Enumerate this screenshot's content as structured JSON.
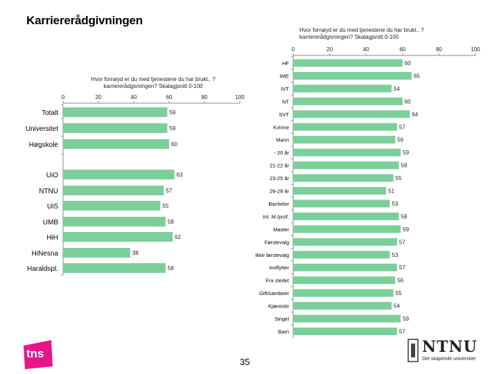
{
  "page": {
    "title": "Karriererådgivningen",
    "page_number": "35",
    "bar_color": "#7ccf9b"
  },
  "logos": {
    "tns": "tns",
    "ntnu_name": "NTNU",
    "ntnu_tagline": "Det skapende universitet"
  },
  "chart_data": [
    {
      "type": "bar",
      "orientation": "horizontal",
      "title": "Hvor fornøyd er du med tjenestene du har brukt.. ? karriererådgivningen? Skalagjsnitt 0-100",
      "xlim": [
        0,
        100
      ],
      "ticks": [
        0,
        20,
        40,
        60,
        80,
        100
      ],
      "groups": [
        {
          "categories": [
            "Totalt",
            "Universitet",
            "Høgskole"
          ],
          "values": [
            59,
            59,
            60
          ]
        },
        {
          "categories": [
            "UiO",
            "NTNU",
            "UiS",
            "UMB",
            "HiH",
            "HiNesna",
            "Haraldspl."
          ],
          "values": [
            63,
            57,
            55,
            58,
            62,
            38,
            58
          ]
        }
      ]
    },
    {
      "type": "bar",
      "orientation": "horizontal",
      "title": "Hvor fornøyd er du med tjenestene du har brukt.. ? karriererådgivningen? Skalagjsnitt 0-100",
      "xlim": [
        0,
        100
      ],
      "ticks": [
        0,
        20,
        40,
        60,
        80,
        100
      ],
      "categories": [
        "HF",
        "IME",
        "IVT",
        "NT",
        "SVT",
        "Kvinne",
        "Mann",
        "- 20 år",
        "21-22 år",
        "23-25 år",
        "26-28 år",
        "Bachelor",
        "Int. M./prof.",
        "Master",
        "Førstevalg",
        "Ikke førstevalg",
        "Innflytter",
        "Fra stedet",
        "Gift/samboer",
        "Kjæreste",
        "Singel",
        "Barn"
      ],
      "values": [
        60,
        65,
        54,
        60,
        64,
        57,
        56,
        59,
        58,
        55,
        51,
        53,
        58,
        59,
        57,
        53,
        57,
        56,
        55,
        54,
        59,
        57
      ]
    }
  ]
}
